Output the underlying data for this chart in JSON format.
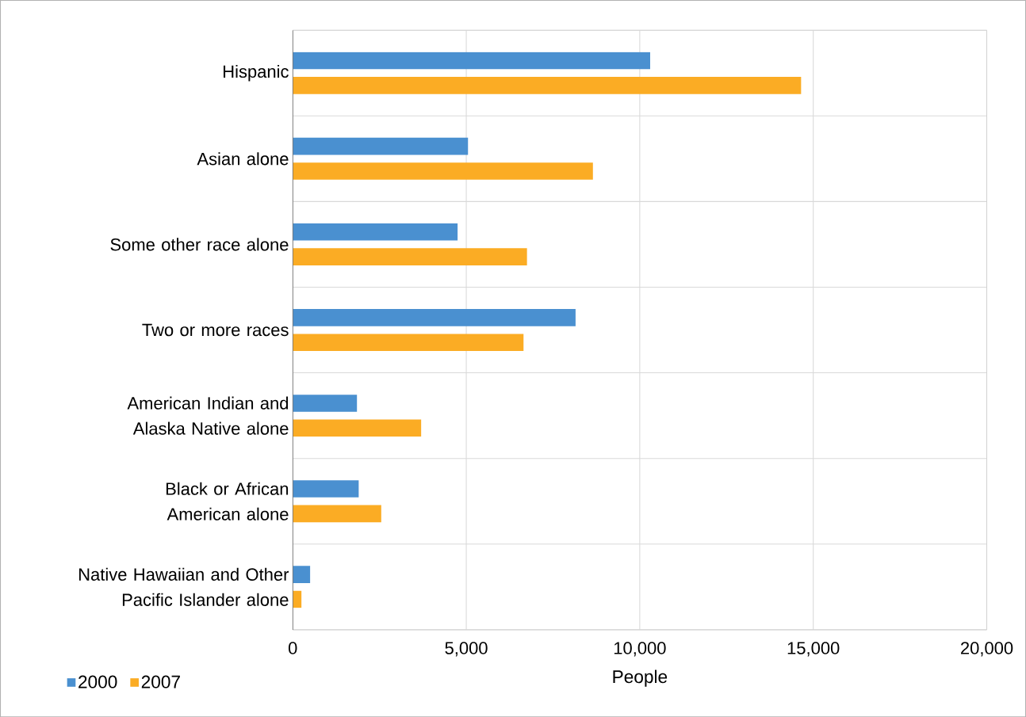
{
  "chart_data": {
    "type": "bar",
    "orientation": "horizontal",
    "xlabel": "People",
    "categories": [
      "Hispanic",
      "Asian alone",
      "Some other race alone",
      "Two or more races",
      "American Indian and Alaska Native alone",
      "Black or African American alone",
      "Native Hawaiian and Other Pacific Islander alone"
    ],
    "series": [
      {
        "name": "2000",
        "color": "#4a90d0",
        "values": [
          10300,
          5050,
          4750,
          8150,
          1850,
          1900,
          500
        ]
      },
      {
        "name": "2007",
        "color": "#fbac24",
        "values": [
          14650,
          8650,
          6750,
          6650,
          3700,
          2550,
          250
        ]
      }
    ],
    "xlim": [
      0,
      20000
    ],
    "xticks": [
      0,
      {
        "value": 5000,
        "label": "5,000"
      },
      {
        "value": 10000,
        "label": "10,000"
      },
      {
        "value": 15000,
        "label": "15,000"
      },
      {
        "value": 20000,
        "label": "20,000"
      }
    ],
    "grid": true,
    "legend": "bottom left"
  }
}
